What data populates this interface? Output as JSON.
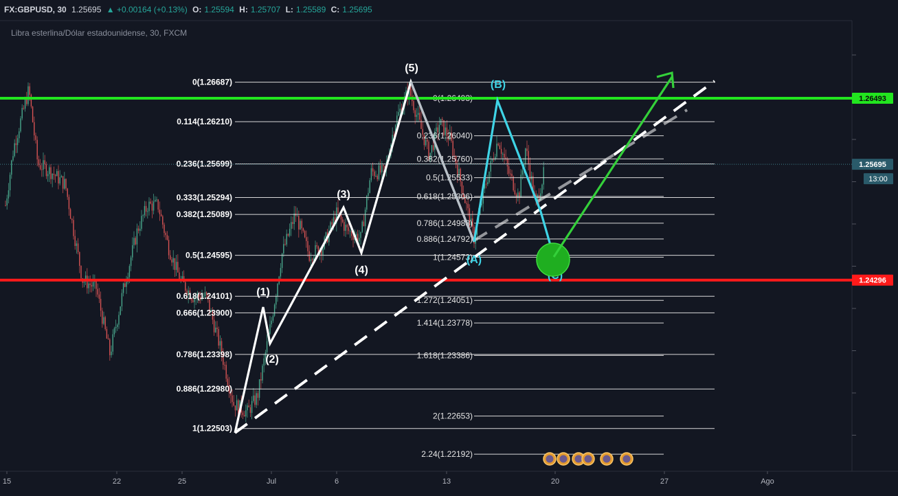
{
  "header": {
    "symbol": "FX:GBPUSD, 30",
    "last": "1.25695",
    "change": "▲ +0.00164 (+0.13%)",
    "o_label": "O:",
    "o": "1.25594",
    "h_label": "H:",
    "h": "1.25707",
    "l_label": "L:",
    "l": "1.25589",
    "c_label": "C:",
    "c": "1.25695"
  },
  "chart_data": {
    "type": "line",
    "title": "Libra esterlina/Dólar estadounidense, 30, FXCM",
    "xlabel": "",
    "ylabel": "",
    "ylim": [
      1.218,
      1.272
    ],
    "x_ticks": [
      "15",
      "22",
      "25",
      "Jul",
      "6",
      "13",
      "20",
      "27",
      "Ago"
    ],
    "price_labels": {
      "resistance": "1.26493",
      "current": "1.25695",
      "timer": "13:00",
      "support": "1.24296"
    },
    "levels": {
      "resistance": 1.26493,
      "current": 1.25695,
      "support": 1.24296
    },
    "colors": {
      "resistance": "#22e51f",
      "support": "#ff1a1a",
      "current": "#2a5a6a",
      "impulse": "#ffffff",
      "correction": "#3fd4e6",
      "projection": "#34d03a",
      "candle_up": "#4caf92",
      "candle_down": "#e05656"
    },
    "fib_main": [
      {
        "label": "0(1.26687)",
        "price": 1.26687
      },
      {
        "label": "0.114(1.26210)",
        "price": 1.2621
      },
      {
        "label": "0.236(1.25699)",
        "price": 1.25699
      },
      {
        "label": "0.333(1.25294)",
        "price": 1.25294
      },
      {
        "label": "0.382(1.25089)",
        "price": 1.25089
      },
      {
        "label": "0.5(1.24595)",
        "price": 1.24595
      },
      {
        "label": "0.618(1.24101)",
        "price": 1.24101
      },
      {
        "label": "0.666(1.23900)",
        "price": 1.239
      },
      {
        "label": "0.786(1.23398)",
        "price": 1.23398
      },
      {
        "label": "0.886(1.22980)",
        "price": 1.2298
      },
      {
        "label": "1(1.22503)",
        "price": 1.22503
      }
    ],
    "fib_second": [
      {
        "label": "0(1.26493)",
        "price": 1.26493
      },
      {
        "label": "0.236(1.26040)",
        "price": 1.2604
      },
      {
        "label": "0.382(1.25760)",
        "price": 1.2576
      },
      {
        "label": "0.5(1.25533)",
        "price": 1.25533
      },
      {
        "label": "0.618(1.25306)",
        "price": 1.25306
      },
      {
        "label": "0.786(1.24983)",
        "price": 1.24983
      },
      {
        "label": "0.886(1.24792)",
        "price": 1.24792
      },
      {
        "label": "1(1.24573)",
        "price": 1.24573
      },
      {
        "label": "1.272(1.24051)",
        "price": 1.24051
      },
      {
        "label": "1.414(1.23778)",
        "price": 1.23778
      },
      {
        "label": "1.618(1.23386)",
        "price": 1.23386
      },
      {
        "label": "2(1.22653)",
        "price": 1.22653
      },
      {
        "label": "2.24(1.22192)",
        "price": 1.22192
      }
    ],
    "wave_labels": [
      "(1)",
      "(2)",
      "(3)",
      "(4)",
      "(5)",
      "(A)",
      "(B)",
      "(C)"
    ]
  }
}
